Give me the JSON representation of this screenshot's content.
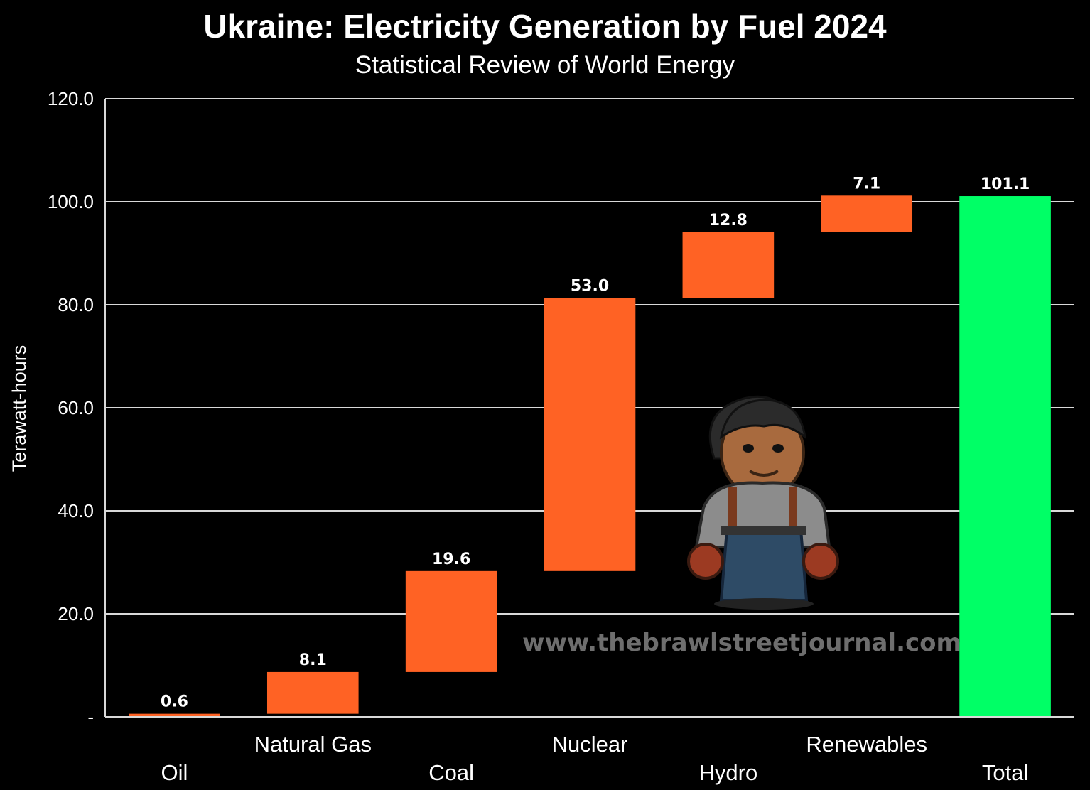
{
  "chart_data": {
    "type": "bar",
    "subtype": "waterfall",
    "title": "Ukraine: Electricity Generation by Fuel 2024",
    "subtitle": "Statistical Review of World Energy",
    "ylabel": "Terawatt-hours",
    "xlabel": "",
    "ylim": [
      0,
      120
    ],
    "yticks": [
      "-",
      "20.0",
      "40.0",
      "60.0",
      "80.0",
      "100.0",
      "120.0"
    ],
    "grid": true,
    "categories": [
      "Oil",
      "Natural Gas",
      "Coal",
      "Nuclear",
      "Hydro",
      "Renewables",
      "Total"
    ],
    "values": [
      0.6,
      8.1,
      19.6,
      53.0,
      12.8,
      7.1,
      101.1
    ],
    "labels": [
      "0.6",
      "8.1",
      "19.6",
      "53.0",
      "12.8",
      "7.1",
      "101.1"
    ],
    "colors": {
      "increment": "#ff6224",
      "total": "#00ff66",
      "background": "#000000",
      "grid": "#d9d9d9"
    }
  },
  "watermark": "www.thebrawlstreetjournal.com",
  "mascot_icon": "mechanic-mascot-icon"
}
